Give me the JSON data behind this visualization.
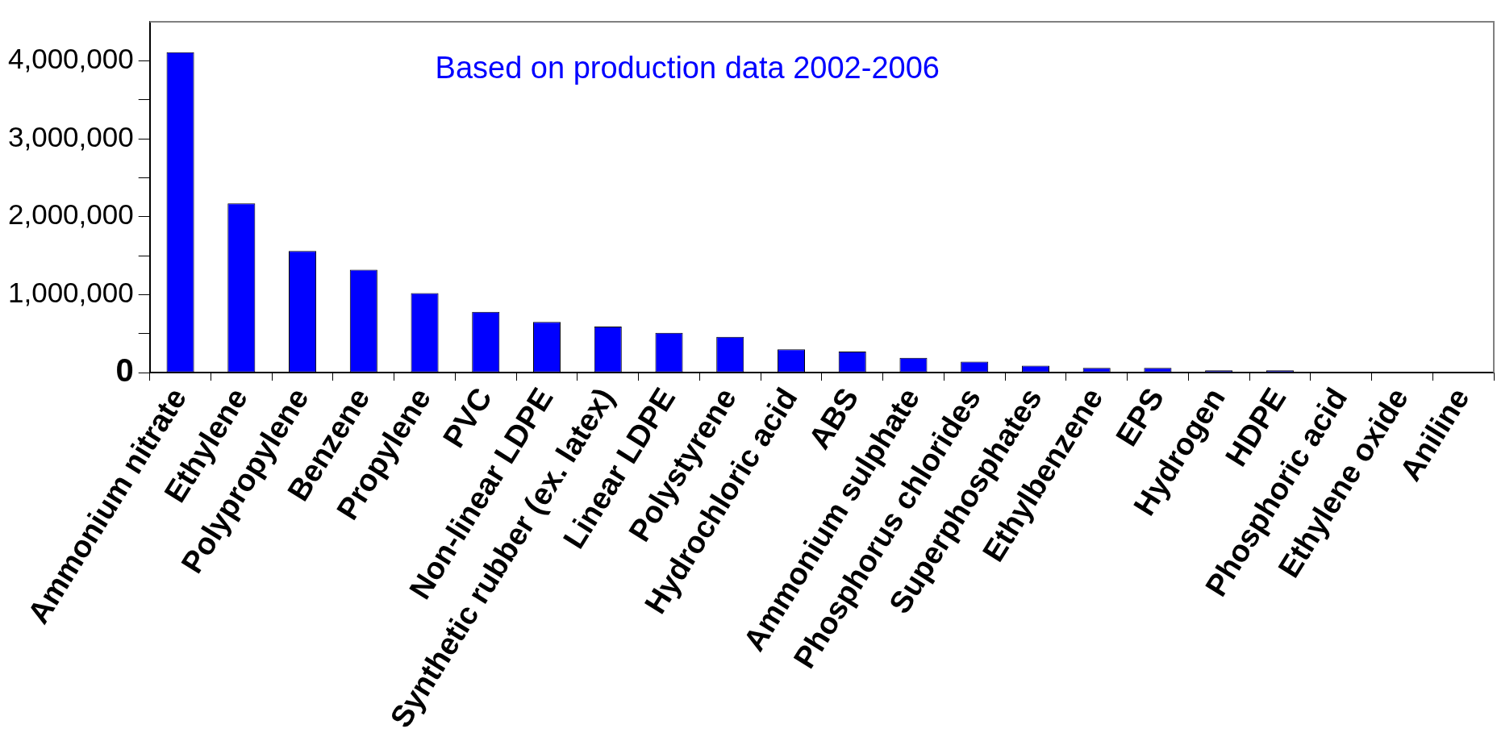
{
  "chart_data": {
    "type": "bar",
    "annotations": [
      "Based on production data 2002-2006"
    ],
    "categories": [
      "Ammonium nitrate",
      "Ethylene",
      "Polypropylene",
      "Benzene",
      "Propylene",
      "PVC",
      "Non-linear LDPE",
      "Synthetic rubber (ex. latex)",
      "Linear LDPE",
      "Polystyrene",
      "Hydrochloric acid",
      "ABS",
      "Ammonium sulphate",
      "Phosphorus chlorides",
      "Superphosphates",
      "Ethylbenzene",
      "EPS",
      "Hydrogen",
      "HDPE",
      "Phosphoric acid",
      "Ethylene oxide",
      "Aniline"
    ],
    "values": [
      4110000,
      2170000,
      1560000,
      1320000,
      1020000,
      780000,
      650000,
      590000,
      510000,
      460000,
      300000,
      270000,
      190000,
      140000,
      90000,
      60000,
      60000,
      30000,
      30000,
      0,
      0,
      0
    ],
    "color": "#0000ff",
    "ylim": [
      0,
      4500000
    ],
    "yticks": [
      0,
      {
        "value": 500000,
        "label": null
      },
      {
        "value": 1000000,
        "label": "1,000,000"
      },
      {
        "value": 1500000,
        "label": null
      },
      {
        "value": 2000000,
        "label": "2,000,000"
      },
      {
        "value": 2500000,
        "label": null
      },
      {
        "value": 3000000,
        "label": "3,000,000"
      },
      {
        "value": 3500000,
        "label": null
      },
      {
        "value": 4000000,
        "label": "4,000,000"
      }
    ],
    "grid": false,
    "legend": false
  }
}
